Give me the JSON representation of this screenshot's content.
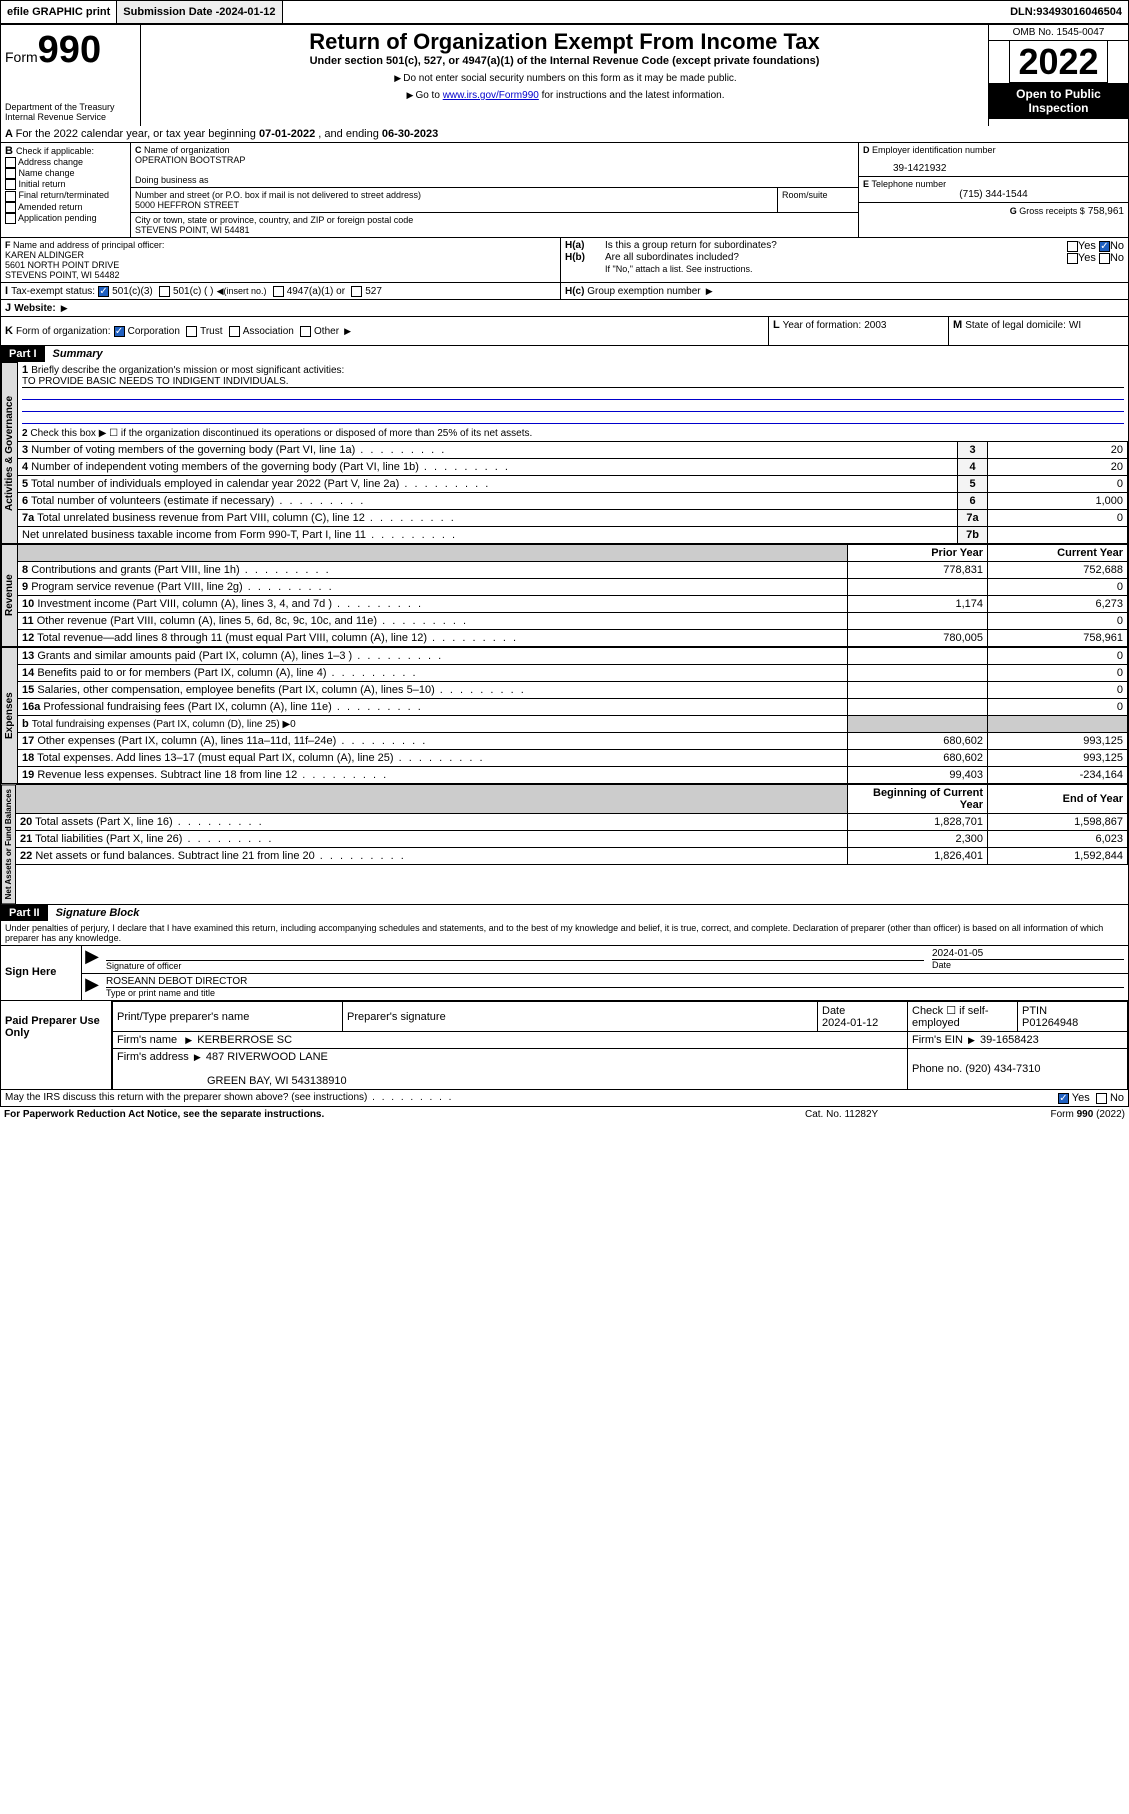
{
  "topbar": {
    "efile": "efile GRAPHIC print",
    "submission_label": "Submission Date - ",
    "submission_date": "2024-01-12",
    "dln_label": "DLN: ",
    "dln": "93493016046504"
  },
  "header": {
    "form_word": "Form",
    "form_number": "990",
    "dept": "Department of the Treasury",
    "irs": "Internal Revenue Service",
    "title": "Return of Organization Exempt From Income Tax",
    "sub1": "Under section 501(c), 527, or 4947(a)(1) of the Internal Revenue Code (except private foundations)",
    "sub2": "Do not enter social security numbers on this form as it may be made public.",
    "sub3_pre": "Go to ",
    "sub3_link": "www.irs.gov/Form990",
    "sub3_post": " for instructions and the latest information.",
    "omb": "OMB No. 1545-0047",
    "year": "2022",
    "open": "Open to Public Inspection"
  },
  "A": {
    "text_pre": "For the 2022 calendar year, or tax year beginning ",
    "begin": "07-01-2022",
    "text_mid": " , and ending ",
    "end": "06-30-2023"
  },
  "B": {
    "label": "Check if applicable:",
    "items": [
      "Address change",
      "Name change",
      "Initial return",
      "Final return/terminated",
      "Amended return",
      "Application pending"
    ]
  },
  "C": {
    "name_label": "Name of organization",
    "name": "OPERATION BOOTSTRAP",
    "dba_label": "Doing business as",
    "street_label": "Number and street (or P.O. box if mail is not delivered to street address)",
    "room_label": "Room/suite",
    "street": "5000 HEFFRON STREET",
    "city_label": "City or town, state or province, country, and ZIP or foreign postal code",
    "city": "STEVENS POINT, WI  54481"
  },
  "D": {
    "label": "Employer identification number",
    "value": "39-1421932"
  },
  "E": {
    "label": "Telephone number",
    "value": "(715) 344-1544"
  },
  "G": {
    "label": "Gross receipts $",
    "value": "758,961"
  },
  "F": {
    "label": "Name and address of principal officer:",
    "name": "KAREN ALDINGER",
    "addr1": "5601 NORTH POINT DRIVE",
    "addr2": "STEVENS POINT, WI  54482"
  },
  "H": {
    "a": "Is this a group return for subordinates?",
    "b": "Are all subordinates included?",
    "note": "If \"No,\" attach a list. See instructions.",
    "c": "Group exemption number"
  },
  "I": {
    "label": "Tax-exempt status:",
    "opts": [
      "501(c)(3)",
      "501(c) (  )",
      "(insert no.)",
      "4947(a)(1) or",
      "527"
    ]
  },
  "J": {
    "label": "Website:"
  },
  "K": {
    "label": "Form of organization:",
    "opts": [
      "Corporation",
      "Trust",
      "Association",
      "Other"
    ]
  },
  "L": {
    "label": "Year of formation:",
    "value": "2003"
  },
  "M": {
    "label": "State of legal domicile:",
    "value": "WI"
  },
  "part1": {
    "hdr": "Part I",
    "title": "Summary",
    "q1": "Briefly describe the organization's mission or most significant activities:",
    "mission": "TO PROVIDE BASIC NEEDS TO INDIGENT INDIVIDUALS.",
    "q2": "Check this box ▶ ☐  if the organization discontinued its operations or disposed of more than 25% of its net assets.",
    "rows_gov": [
      {
        "n": "3",
        "t": "Number of voting members of the governing body (Part VI, line 1a)",
        "k": "3",
        "v": "20"
      },
      {
        "n": "4",
        "t": "Number of independent voting members of the governing body (Part VI, line 1b)",
        "k": "4",
        "v": "20"
      },
      {
        "n": "5",
        "t": "Total number of individuals employed in calendar year 2022 (Part V, line 2a)",
        "k": "5",
        "v": "0"
      },
      {
        "n": "6",
        "t": "Total number of volunteers (estimate if necessary)",
        "k": "6",
        "v": "1,000"
      },
      {
        "n": "7a",
        "t": "Total unrelated business revenue from Part VIII, column (C), line 12",
        "k": "7a",
        "v": "0"
      },
      {
        "n": "",
        "t": "Net unrelated business taxable income from Form 990-T, Part I, line 11",
        "k": "7b",
        "v": ""
      }
    ],
    "col_prior": "Prior Year",
    "col_current": "Current Year",
    "rows_rev": [
      {
        "n": "8",
        "t": "Contributions and grants (Part VIII, line 1h)",
        "p": "778,831",
        "c": "752,688"
      },
      {
        "n": "9",
        "t": "Program service revenue (Part VIII, line 2g)",
        "p": "",
        "c": "0"
      },
      {
        "n": "10",
        "t": "Investment income (Part VIII, column (A), lines 3, 4, and 7d )",
        "p": "1,174",
        "c": "6,273"
      },
      {
        "n": "11",
        "t": "Other revenue (Part VIII, column (A), lines 5, 6d, 8c, 9c, 10c, and 11e)",
        "p": "",
        "c": "0"
      },
      {
        "n": "12",
        "t": "Total revenue—add lines 8 through 11 (must equal Part VIII, column (A), line 12)",
        "p": "780,005",
        "c": "758,961"
      }
    ],
    "rows_exp": [
      {
        "n": "13",
        "t": "Grants and similar amounts paid (Part IX, column (A), lines 1–3 )",
        "p": "",
        "c": "0"
      },
      {
        "n": "14",
        "t": "Benefits paid to or for members (Part IX, column (A), line 4)",
        "p": "",
        "c": "0"
      },
      {
        "n": "15",
        "t": "Salaries, other compensation, employee benefits (Part IX, column (A), lines 5–10)",
        "p": "",
        "c": "0"
      },
      {
        "n": "16a",
        "t": "Professional fundraising fees (Part IX, column (A), line 11e)",
        "p": "",
        "c": "0"
      },
      {
        "n": "b",
        "t": "Total fundraising expenses (Part IX, column (D), line 25) ▶0",
        "p": "—",
        "c": "—"
      },
      {
        "n": "17",
        "t": "Other expenses (Part IX, column (A), lines 11a–11d, 11f–24e)",
        "p": "680,602",
        "c": "993,125"
      },
      {
        "n": "18",
        "t": "Total expenses. Add lines 13–17 (must equal Part IX, column (A), line 25)",
        "p": "680,602",
        "c": "993,125"
      },
      {
        "n": "19",
        "t": "Revenue less expenses. Subtract line 18 from line 12",
        "p": "99,403",
        "c": "-234,164"
      }
    ],
    "col_begin": "Beginning of Current Year",
    "col_end": "End of Year",
    "rows_net": [
      {
        "n": "20",
        "t": "Total assets (Part X, line 16)",
        "p": "1,828,701",
        "c": "1,598,867"
      },
      {
        "n": "21",
        "t": "Total liabilities (Part X, line 26)",
        "p": "2,300",
        "c": "6,023"
      },
      {
        "n": "22",
        "t": "Net assets or fund balances. Subtract line 21 from line 20",
        "p": "1,826,401",
        "c": "1,592,844"
      }
    ],
    "tabs": [
      "Activities & Governance",
      "Revenue",
      "Expenses",
      "Net Assets or Fund Balances"
    ]
  },
  "part2": {
    "hdr": "Part II",
    "title": "Signature Block",
    "decl": "Under penalties of perjury, I declare that I have examined this return, including accompanying schedules and statements, and to the best of my knowledge and belief, it is true, correct, and complete. Declaration of preparer (other than officer) is based on all information of which preparer has any knowledge.",
    "sign_here": "Sign Here",
    "sig_officer": "Signature of officer",
    "sig_date": "2024-01-05",
    "date_label": "Date",
    "officer_name": "ROSEANN DEBOT DIRECTOR",
    "type_name": "Type or print name and title",
    "paid": "Paid Preparer Use Only",
    "pt_name": "Print/Type preparer's name",
    "pt_sig": "Preparer's signature",
    "pt_date_label": "Date",
    "pt_date": "2024-01-12",
    "pt_check": "Check ☐ if self-employed",
    "ptin_label": "PTIN",
    "ptin": "P01264948",
    "firm_name_label": "Firm's name",
    "firm_name": "KERBERROSE SC",
    "firm_ein_label": "Firm's EIN",
    "firm_ein": "39-1658423",
    "firm_addr_label": "Firm's address",
    "firm_addr1": "487 RIVERWOOD LANE",
    "firm_addr2": "GREEN BAY, WI  543138910",
    "phone_label": "Phone no.",
    "phone": "(920) 434-7310",
    "may_irs": "May the IRS discuss this return with the preparer shown above? (see instructions)",
    "yes": "Yes",
    "no": "No"
  },
  "footer": {
    "pra": "For Paperwork Reduction Act Notice, see the separate instructions.",
    "cat": "Cat. No. 11282Y",
    "form": "Form 990 (2022)"
  }
}
